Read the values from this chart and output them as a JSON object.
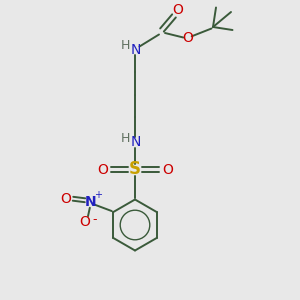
{
  "background_color": "#e8e8e8",
  "bond_color": "#3a5a3a",
  "atom_colors": {
    "N": "#2020c0",
    "O": "#cc0000",
    "S": "#c8a000",
    "H": "#607060",
    "C": "#3a5a3a",
    "plus": "#2020c0",
    "minus": "#cc0000"
  },
  "figsize": [
    3.0,
    3.0
  ],
  "dpi": 100
}
